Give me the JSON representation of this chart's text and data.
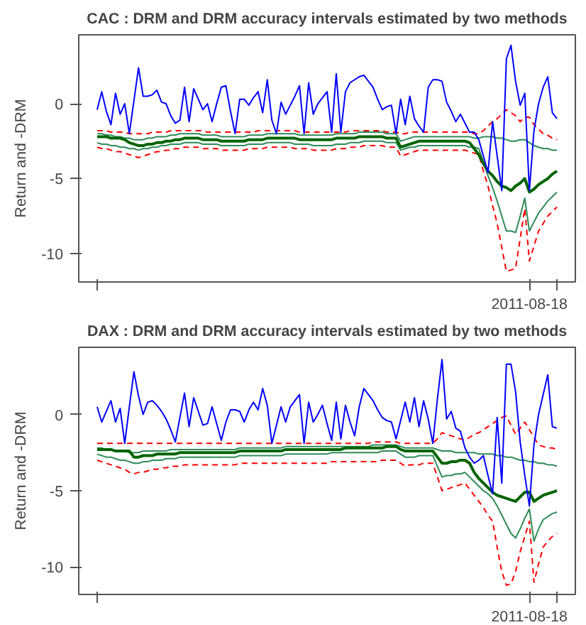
{
  "chart_data": [
    {
      "type": "line",
      "title": "CAC : DRM and DRM accuracy intervals estimated by two methods",
      "ylabel": "Return and -DRM",
      "ylim": [
        -11.9,
        4.6
      ],
      "yticks": [
        -10,
        -5,
        0
      ],
      "grid": false,
      "marker": "none",
      "categories": [
        null,
        null,
        null,
        null,
        null,
        null,
        null,
        null,
        null,
        null,
        null,
        null,
        null,
        null,
        null,
        null,
        null,
        null,
        null,
        null,
        null,
        null,
        null,
        null,
        null,
        null,
        null,
        null,
        null,
        null,
        null,
        null,
        null,
        null,
        null,
        null,
        null,
        null,
        null,
        null,
        null,
        null,
        null,
        null,
        null,
        null,
        null,
        null,
        null,
        null,
        null,
        null,
        null,
        null,
        null,
        null,
        null,
        null,
        null,
        null,
        null,
        null,
        null,
        null,
        null,
        null,
        null,
        null,
        null,
        null,
        null,
        null,
        null,
        null,
        null,
        null,
        null,
        null,
        null,
        null,
        null,
        null,
        null,
        null,
        null,
        null,
        null,
        null,
        null,
        null,
        null,
        null,
        null,
        null,
        "2011-08-18",
        null,
        null,
        null,
        null,
        null,
        null
      ],
      "series": [
        {
          "color": "#ff0000",
          "line_style": "dashed",
          "values": [
            -1.8,
            -1.8,
            -1.8,
            -1.9,
            -1.9,
            -1.9,
            -1.9,
            -2.0,
            -2.0,
            -2.0,
            -2.0,
            -2.0,
            -1.9,
            -1.9,
            -1.9,
            -1.9,
            -1.8,
            -1.8,
            -1.8,
            -1.8,
            -1.8,
            -1.8,
            -1.8,
            -1.8,
            -1.9,
            -1.9,
            -1.9,
            -1.9,
            -1.9,
            -1.9,
            -1.9,
            -1.9,
            -1.9,
            -1.9,
            -1.9,
            -1.8,
            -1.8,
            -1.8,
            -1.8,
            -1.8,
            -1.8,
            -1.8,
            -1.8,
            -1.8,
            -1.9,
            -1.9,
            -1.9,
            -1.9,
            -1.9,
            -1.9,
            -1.9,
            -1.9,
            -1.9,
            -1.9,
            -1.9,
            -1.8,
            -1.8,
            -1.8,
            -1.8,
            -1.8,
            -1.8,
            -1.8,
            -1.8,
            -1.9,
            -1.9,
            -1.9,
            -2.0,
            -2.0,
            -1.9,
            -1.9,
            -1.9,
            -1.9,
            -1.9,
            -1.9,
            -1.9,
            -1.9,
            -1.9,
            -1.9,
            -1.9,
            -1.9,
            -1.9,
            -1.9,
            -2.0,
            -2.0,
            -1.8,
            -1.5,
            -1.2,
            -1.0,
            -0.7,
            -0.4,
            -0.6,
            -0.8,
            -1.2,
            -0.9,
            -0.9,
            -1.4,
            -1.7,
            -2.0,
            -2.1,
            -2.3,
            -2.4
          ]
        },
        {
          "color": "#ff0000",
          "line_style": "dashed",
          "values": [
            -2.9,
            -3.0,
            -3.0,
            -3.1,
            -3.2,
            -3.2,
            -3.3,
            -3.4,
            -3.5,
            -3.6,
            -3.5,
            -3.4,
            -3.3,
            -3.2,
            -3.2,
            -3.1,
            -3.1,
            -3.0,
            -3.0,
            -2.9,
            -2.9,
            -2.9,
            -2.9,
            -3.0,
            -3.0,
            -3.0,
            -3.0,
            -3.1,
            -3.1,
            -3.1,
            -3.1,
            -3.1,
            -3.1,
            -3.0,
            -3.0,
            -3.0,
            -3.0,
            -2.9,
            -2.9,
            -2.9,
            -2.9,
            -2.9,
            -2.9,
            -3.0,
            -3.0,
            -3.0,
            -3.0,
            -3.1,
            -3.1,
            -3.1,
            -3.1,
            -3.1,
            -3.0,
            -3.0,
            -3.0,
            -2.9,
            -2.9,
            -2.9,
            -2.8,
            -2.8,
            -2.8,
            -2.8,
            -2.8,
            -2.9,
            -2.9,
            -2.9,
            -3.5,
            -3.4,
            -3.3,
            -3.2,
            -3.1,
            -3.1,
            -3.1,
            -3.1,
            -3.1,
            -3.1,
            -3.1,
            -3.1,
            -3.1,
            -3.1,
            -3.1,
            -3.2,
            -3.3,
            -3.4,
            -4.5,
            -5.5,
            -6.8,
            -8.0,
            -9.6,
            -11.2,
            -11.1,
            -11.0,
            -9.0,
            -7.0,
            -10.5,
            -9.5,
            -8.5,
            -8.0,
            -7.5,
            -7.2,
            -6.9
          ]
        },
        {
          "color": "#2e8b57",
          "line_style": "solid",
          "values": [
            -2.0,
            -2.0,
            -2.1,
            -2.1,
            -2.2,
            -2.2,
            -2.3,
            -2.3,
            -2.4,
            -2.4,
            -2.4,
            -2.3,
            -2.3,
            -2.2,
            -2.2,
            -2.2,
            -2.1,
            -2.1,
            -2.0,
            -2.0,
            -2.0,
            -2.0,
            -2.0,
            -2.1,
            -2.1,
            -2.1,
            -2.1,
            -2.2,
            -2.2,
            -2.2,
            -2.2,
            -2.2,
            -2.2,
            -2.1,
            -2.1,
            -2.1,
            -2.1,
            -2.0,
            -2.0,
            -2.0,
            -2.0,
            -2.0,
            -2.0,
            -2.0,
            -2.1,
            -2.1,
            -2.1,
            -2.1,
            -2.1,
            -2.1,
            -2.1,
            -2.1,
            -2.0,
            -2.0,
            -2.0,
            -2.0,
            -2.0,
            -1.9,
            -1.9,
            -1.9,
            -1.9,
            -1.9,
            -1.9,
            -2.0,
            -2.0,
            -2.0,
            -2.5,
            -2.4,
            -2.3,
            -2.2,
            -2.2,
            -2.2,
            -2.2,
            -2.2,
            -2.2,
            -2.2,
            -2.2,
            -2.2,
            -2.2,
            -2.2,
            -2.2,
            -2.2,
            -2.3,
            -2.3,
            -2.2,
            -2.2,
            -2.2,
            -2.3,
            -2.3,
            -2.4,
            -2.5,
            -2.5,
            -2.4,
            -2.4,
            -2.6,
            -2.8,
            -2.9,
            -3.0,
            -3.0,
            -3.1,
            -3.1
          ]
        },
        {
          "color": "#2e8b57",
          "line_style": "solid",
          "values": [
            -2.6,
            -2.7,
            -2.7,
            -2.8,
            -2.8,
            -2.9,
            -2.9,
            -3.0,
            -3.0,
            -3.1,
            -3.0,
            -3.0,
            -2.9,
            -2.9,
            -2.8,
            -2.8,
            -2.7,
            -2.7,
            -2.7,
            -2.6,
            -2.6,
            -2.6,
            -2.6,
            -2.7,
            -2.7,
            -2.7,
            -2.7,
            -2.8,
            -2.8,
            -2.8,
            -2.8,
            -2.8,
            -2.8,
            -2.7,
            -2.7,
            -2.7,
            -2.7,
            -2.6,
            -2.6,
            -2.6,
            -2.6,
            -2.6,
            -2.6,
            -2.7,
            -2.7,
            -2.7,
            -2.7,
            -2.8,
            -2.8,
            -2.8,
            -2.8,
            -2.8,
            -2.7,
            -2.7,
            -2.7,
            -2.6,
            -2.6,
            -2.6,
            -2.5,
            -2.5,
            -2.5,
            -2.5,
            -2.5,
            -2.6,
            -2.6,
            -2.6,
            -3.1,
            -3.0,
            -2.9,
            -2.9,
            -2.8,
            -2.8,
            -2.8,
            -2.8,
            -2.8,
            -2.8,
            -2.8,
            -2.8,
            -2.8,
            -2.8,
            -2.8,
            -2.9,
            -2.9,
            -3.0,
            -3.9,
            -4.8,
            -5.6,
            -6.5,
            -7.5,
            -8.5,
            -8.5,
            -8.6,
            -7.5,
            -6.3,
            -8.5,
            -7.9,
            -7.3,
            -6.9,
            -6.5,
            -6.2,
            -5.9
          ]
        },
        {
          "color": "#006400",
          "line_style": "solid",
          "values": [
            -2.2,
            -2.2,
            -2.2,
            -2.3,
            -2.3,
            -2.3,
            -2.4,
            -2.6,
            -2.7,
            -2.8,
            -2.8,
            -2.7,
            -2.7,
            -2.6,
            -2.6,
            -2.5,
            -2.5,
            -2.4,
            -2.4,
            -2.3,
            -2.3,
            -2.3,
            -2.3,
            -2.4,
            -2.4,
            -2.4,
            -2.4,
            -2.5,
            -2.5,
            -2.5,
            -2.5,
            -2.5,
            -2.5,
            -2.4,
            -2.4,
            -2.4,
            -2.4,
            -2.3,
            -2.3,
            -2.3,
            -2.3,
            -2.3,
            -2.3,
            -2.3,
            -2.4,
            -2.4,
            -2.4,
            -2.4,
            -2.4,
            -2.4,
            -2.4,
            -2.4,
            -2.3,
            -2.3,
            -2.3,
            -2.3,
            -2.3,
            -2.2,
            -2.2,
            -2.2,
            -2.2,
            -2.2,
            -2.2,
            -2.3,
            -2.3,
            -2.3,
            -2.9,
            -2.8,
            -2.7,
            -2.6,
            -2.5,
            -2.5,
            -2.5,
            -2.5,
            -2.5,
            -2.5,
            -2.5,
            -2.5,
            -2.5,
            -2.5,
            -2.5,
            -2.6,
            -3.0,
            -3.4,
            -4.0,
            -4.5,
            -4.8,
            -5.2,
            -5.5,
            -5.6,
            -5.8,
            -5.5,
            -5.3,
            -5.0,
            -5.9,
            -5.7,
            -5.4,
            -5.2,
            -5.0,
            -4.7,
            -4.5
          ]
        },
        {
          "color": "#0000ff",
          "line_style": "solid",
          "values": [
            -0.4,
            0.8,
            -0.5,
            -1.4,
            0.7,
            -0.7,
            0,
            -2.0,
            0.2,
            2.4,
            0.5,
            0.5,
            0.6,
            0.9,
            0.1,
            0,
            -0.8,
            -1.3,
            -1.1,
            1.1,
            -1.2,
            1.0,
            0.3,
            -0.4,
            0,
            -1.2,
            0,
            1.1,
            1.2,
            -0.5,
            -2.0,
            0.3,
            0.3,
            -0.1,
            0.4,
            0.8,
            -0.6,
            1.6,
            -1.1,
            -2.0,
            0.1,
            -0.7,
            -0.1,
            0.5,
            1.2,
            -2.0,
            1.4,
            -0.7,
            0,
            0.4,
            0.8,
            -1.9,
            2.0,
            -1.9,
            0.8,
            1.4,
            1.6,
            1.8,
            1.9,
            1.5,
            1.1,
            0.3,
            -0.4,
            -0.2,
            -0.1,
            -2.0,
            0.3,
            -1.4,
            0.5,
            -1.0,
            -1.5,
            -1.9,
            1.1,
            1.6,
            1.6,
            1.5,
            0.1,
            -0.5,
            -1.2,
            -0.7,
            -1.3,
            -1.9,
            -1.9,
            -2.4,
            -3.5,
            -4.6,
            -1.2,
            -3.5,
            -5.8,
            3.0,
            3.9,
            1.5,
            -0.1,
            0.7,
            -5.8,
            -1.8,
            0,
            1.1,
            1.8,
            -0.6,
            -1.0
          ]
        }
      ]
    },
    {
      "type": "line",
      "title": "DAX : DRM and DRM accuracy intervals estimated by two methods",
      "ylabel": "Return and -DRM",
      "ylim": [
        -11.8,
        4.4
      ],
      "yticks": [
        -10,
        -5,
        0
      ],
      "grid": false,
      "marker": "none",
      "categories": [
        null,
        null,
        null,
        null,
        null,
        null,
        null,
        null,
        null,
        null,
        null,
        null,
        null,
        null,
        null,
        null,
        null,
        null,
        null,
        null,
        null,
        null,
        null,
        null,
        null,
        null,
        null,
        null,
        null,
        null,
        null,
        null,
        null,
        null,
        null,
        null,
        null,
        null,
        null,
        null,
        null,
        null,
        null,
        null,
        null,
        null,
        null,
        null,
        null,
        null,
        null,
        null,
        null,
        null,
        null,
        null,
        null,
        null,
        null,
        null,
        null,
        null,
        null,
        null,
        null,
        null,
        null,
        null,
        null,
        null,
        null,
        null,
        null,
        null,
        null,
        null,
        null,
        null,
        null,
        null,
        null,
        null,
        null,
        null,
        null,
        null,
        null,
        null,
        null,
        null,
        null,
        null,
        null,
        null,
        "2011-08-18",
        null,
        null,
        null,
        null,
        null,
        null
      ],
      "series": [
        {
          "color": "#ff0000",
          "line_style": "dashed",
          "values": [
            -1.9,
            -1.9,
            -1.9,
            -1.9,
            -1.9,
            -1.9,
            -1.9,
            -1.9,
            -1.9,
            -1.9,
            -1.9,
            -1.9,
            -1.9,
            -1.9,
            -1.9,
            -1.9,
            -1.9,
            -1.9,
            -1.9,
            -1.9,
            -1.9,
            -1.9,
            -1.9,
            -1.9,
            -1.9,
            -1.9,
            -1.9,
            -1.9,
            -1.9,
            -1.9,
            -1.9,
            -1.9,
            -1.9,
            -1.9,
            -1.9,
            -1.9,
            -1.9,
            -1.9,
            -1.9,
            -1.9,
            -1.9,
            -1.9,
            -1.9,
            -1.9,
            -1.9,
            -1.9,
            -1.9,
            -1.9,
            -1.9,
            -1.9,
            -1.9,
            -1.9,
            -1.9,
            -1.9,
            -1.9,
            -1.9,
            -1.9,
            -1.9,
            -1.9,
            -1.9,
            -1.8,
            -1.8,
            -1.8,
            -1.8,
            -1.8,
            -1.8,
            -1.9,
            -1.9,
            -1.9,
            -1.9,
            -1.9,
            -1.9,
            -1.9,
            -1.9,
            -1.6,
            -1.2,
            -1.3,
            -1.4,
            -1.5,
            -1.6,
            -1.7,
            -1.5,
            -1.3,
            -1.2,
            -1.0,
            -0.8,
            -0.6,
            -0.4,
            -0.2,
            -0.1,
            -0.7,
            -1.3,
            -0.9,
            -0.5,
            -1.0,
            -1.5,
            -2.0,
            -2.1,
            -2.2,
            -2.2,
            -2.3
          ]
        },
        {
          "color": "#ff0000",
          "line_style": "dashed",
          "values": [
            -3.0,
            -3.1,
            -3.2,
            -3.3,
            -3.4,
            -3.5,
            -3.6,
            -3.8,
            -3.9,
            -3.8,
            -3.8,
            -3.7,
            -3.6,
            -3.6,
            -3.5,
            -3.5,
            -3.4,
            -3.4,
            -3.4,
            -3.3,
            -3.3,
            -3.3,
            -3.3,
            -3.3,
            -3.3,
            -3.3,
            -3.3,
            -3.3,
            -3.3,
            -3.3,
            -3.3,
            -3.2,
            -3.2,
            -3.2,
            -3.2,
            -3.2,
            -3.2,
            -3.2,
            -3.2,
            -3.2,
            -3.2,
            -3.2,
            -3.2,
            -3.2,
            -3.2,
            -3.2,
            -3.2,
            -3.2,
            -3.2,
            -3.2,
            -3.2,
            -3.1,
            -3.1,
            -3.1,
            -3.1,
            -3.1,
            -3.1,
            -3.1,
            -3.1,
            -3.1,
            -3.1,
            -3.1,
            -3.0,
            -3.0,
            -3.0,
            -3.0,
            -3.2,
            -3.4,
            -3.3,
            -3.3,
            -3.3,
            -3.2,
            -3.2,
            -3.2,
            -4.1,
            -5.0,
            -4.9,
            -4.8,
            -4.7,
            -4.6,
            -4.5,
            -4.9,
            -5.3,
            -5.7,
            -6.1,
            -6.6,
            -7.0,
            -8.7,
            -10.3,
            -11.2,
            -11.1,
            -10.3,
            -9.0,
            -8.0,
            -7.0,
            -11.0,
            -9.8,
            -8.7,
            -8.3,
            -8.0,
            -7.8
          ]
        },
        {
          "color": "#2e8b57",
          "line_style": "solid",
          "values": [
            -2.2,
            -2.2,
            -2.3,
            -2.3,
            -2.4,
            -2.4,
            -2.4,
            -2.5,
            -2.5,
            -2.5,
            -2.4,
            -2.4,
            -2.4,
            -2.4,
            -2.4,
            -2.4,
            -2.3,
            -2.3,
            -2.3,
            -2.3,
            -2.3,
            -2.3,
            -2.3,
            -2.3,
            -2.3,
            -2.3,
            -2.3,
            -2.3,
            -2.3,
            -2.3,
            -2.3,
            -2.2,
            -2.2,
            -2.2,
            -2.2,
            -2.2,
            -2.2,
            -2.2,
            -2.2,
            -2.2,
            -2.2,
            -2.1,
            -2.1,
            -2.1,
            -2.1,
            -2.1,
            -2.1,
            -2.1,
            -2.1,
            -2.1,
            -2.1,
            -2.1,
            -2.1,
            -2.1,
            -2.1,
            -2.1,
            -2.1,
            -2.1,
            -2.1,
            -2.1,
            -2.0,
            -2.0,
            -2.0,
            -2.0,
            -2.0,
            -2.0,
            -2.1,
            -2.2,
            -2.2,
            -2.2,
            -2.2,
            -2.2,
            -2.2,
            -2.2,
            -2.3,
            -2.4,
            -2.4,
            -2.4,
            -2.5,
            -2.5,
            -2.5,
            -2.5,
            -2.5,
            -2.6,
            -2.6,
            -2.6,
            -2.6,
            -2.7,
            -2.7,
            -2.8,
            -2.8,
            -2.9,
            -3.0,
            -3.0,
            -3.1,
            -3.1,
            -3.2,
            -3.2,
            -3.3,
            -3.3,
            -3.4
          ]
        },
        {
          "color": "#2e8b57",
          "line_style": "solid",
          "values": [
            -2.6,
            -2.7,
            -2.8,
            -2.8,
            -2.9,
            -3.0,
            -3.0,
            -3.1,
            -3.2,
            -3.2,
            -3.1,
            -3.1,
            -3.0,
            -3.0,
            -3.0,
            -2.9,
            -2.9,
            -2.9,
            -2.8,
            -2.8,
            -2.8,
            -2.8,
            -2.8,
            -2.8,
            -2.8,
            -2.8,
            -2.8,
            -2.8,
            -2.8,
            -2.8,
            -2.8,
            -2.7,
            -2.7,
            -2.7,
            -2.7,
            -2.7,
            -2.7,
            -2.7,
            -2.7,
            -2.7,
            -2.7,
            -2.6,
            -2.6,
            -2.6,
            -2.6,
            -2.6,
            -2.6,
            -2.6,
            -2.6,
            -2.6,
            -2.6,
            -2.5,
            -2.5,
            -2.5,
            -2.5,
            -2.5,
            -2.5,
            -2.5,
            -2.5,
            -2.5,
            -2.5,
            -2.5,
            -2.4,
            -2.4,
            -2.4,
            -2.4,
            -2.6,
            -2.8,
            -2.8,
            -2.8,
            -2.7,
            -2.7,
            -2.7,
            -2.7,
            -3.4,
            -4.1,
            -4.0,
            -4.0,
            -3.9,
            -3.9,
            -3.8,
            -4.1,
            -4.4,
            -4.7,
            -5.0,
            -5.2,
            -5.5,
            -6.0,
            -6.6,
            -7.2,
            -7.8,
            -8.1,
            -7.5,
            -6.8,
            -6.2,
            -8.3,
            -7.5,
            -6.9,
            -6.7,
            -6.5,
            -6.4
          ]
        },
        {
          "color": "#006400",
          "line_style": "solid",
          "values": [
            -2.3,
            -2.3,
            -2.3,
            -2.3,
            -2.4,
            -2.4,
            -2.4,
            -2.4,
            -2.8,
            -2.8,
            -2.7,
            -2.7,
            -2.7,
            -2.6,
            -2.6,
            -2.6,
            -2.6,
            -2.6,
            -2.5,
            -2.5,
            -2.5,
            -2.5,
            -2.5,
            -2.5,
            -2.5,
            -2.5,
            -2.5,
            -2.5,
            -2.5,
            -2.5,
            -2.5,
            -2.4,
            -2.4,
            -2.4,
            -2.4,
            -2.4,
            -2.4,
            -2.4,
            -2.4,
            -2.4,
            -2.4,
            -2.3,
            -2.3,
            -2.3,
            -2.3,
            -2.3,
            -2.3,
            -2.3,
            -2.3,
            -2.3,
            -2.3,
            -2.3,
            -2.3,
            -2.3,
            -2.2,
            -2.2,
            -2.2,
            -2.2,
            -2.2,
            -2.2,
            -2.2,
            -2.2,
            -2.2,
            -2.1,
            -2.1,
            -2.1,
            -2.3,
            -2.4,
            -2.4,
            -2.4,
            -2.4,
            -2.4,
            -2.4,
            -2.4,
            -2.8,
            -3.2,
            -3.2,
            -3.1,
            -3.1,
            -3.0,
            -3.0,
            -3.2,
            -3.8,
            -4.2,
            -4.5,
            -4.8,
            -5.1,
            -5.3,
            -5.4,
            -5.5,
            -5.6,
            -5.7,
            -5.4,
            -5.1,
            -5.1,
            -5.7,
            -5.5,
            -5.3,
            -5.2,
            -5.1,
            -5.0
          ]
        },
        {
          "color": "#0000ff",
          "line_style": "solid",
          "values": [
            0.5,
            -0.5,
            0.2,
            0.9,
            -0.5,
            0.4,
            -1.9,
            0.5,
            2.8,
            1.2,
            0,
            0.8,
            0.9,
            0.6,
            0.2,
            -0.3,
            -1.0,
            -1.8,
            -0.2,
            1.4,
            -0.8,
            1.1,
            0.2,
            -0.7,
            -0.6,
            0.5,
            -0.6,
            -1.7,
            -0.5,
            0.3,
            0.3,
            0.2,
            -0.5,
            0.3,
            0.8,
            0.3,
            1.7,
            0.6,
            -1.9,
            -0.7,
            0.5,
            -0.5,
            0.5,
            0.9,
            1.3,
            -1.9,
            0.8,
            -0.5,
            0,
            0.6,
            -0.6,
            -1.7,
            0.8,
            -1.6,
            0.6,
            -0.5,
            -1.4,
            0.5,
            1.7,
            1.3,
            0.9,
            0.3,
            -0.2,
            -0.4,
            -0.5,
            -1.6,
            -0.4,
            0.8,
            -0.5,
            1.1,
            -0.8,
            0.9,
            -0.3,
            -1.9,
            1.0,
            3.6,
            -0.3,
            0.2,
            -0.9,
            -1.1,
            -2.2,
            -2.8,
            -3.2,
            -3.0,
            -2.7,
            -4.0,
            -5.2,
            -0.2,
            -4.5,
            3.3,
            3.3,
            1.5,
            -1.8,
            -4.0,
            -6.0,
            -2.0,
            0,
            1.3,
            2.6,
            -0.8,
            -0.9
          ]
        }
      ]
    }
  ]
}
